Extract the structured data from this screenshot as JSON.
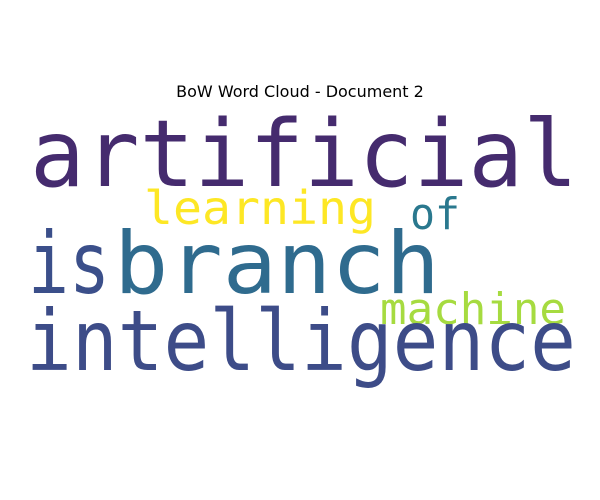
{
  "figure": {
    "title": "BoW Word Cloud - Document 2"
  },
  "word_cloud": {
    "words": [
      {
        "key": "artificial",
        "text": "artificial",
        "color": "#452B6E"
      },
      {
        "key": "is",
        "text": "is",
        "color": "#3B4F8A"
      },
      {
        "key": "branch",
        "text": "branch",
        "color": "#2F6B8E"
      },
      {
        "key": "intelligence",
        "text": "intelligence",
        "color": "#3D4C88"
      },
      {
        "key": "learning",
        "text": "learning",
        "color": "#FDE725"
      },
      {
        "key": "of",
        "text": "of",
        "color": "#2A788E"
      },
      {
        "key": "machine",
        "text": "machine",
        "color": "#A6DB40"
      }
    ]
  }
}
